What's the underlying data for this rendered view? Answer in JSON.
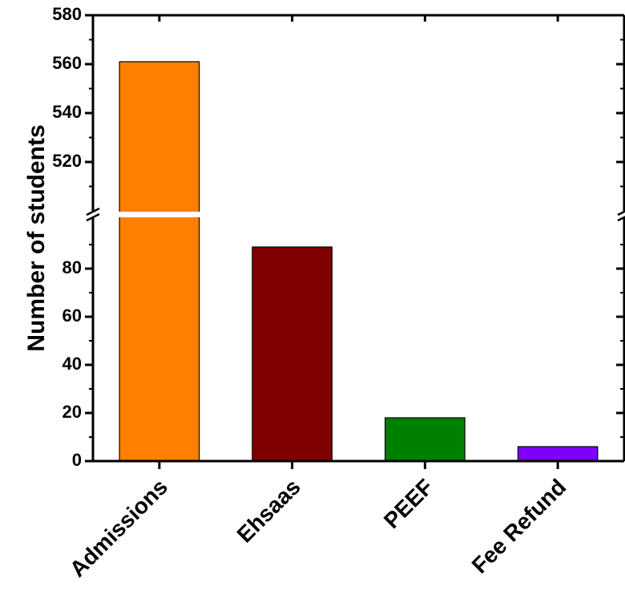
{
  "chart_data": {
    "type": "bar",
    "categories": [
      "Admissions",
      "Ehsaas",
      "PEEF",
      "Fee Refund"
    ],
    "values": [
      561,
      89,
      18,
      6
    ],
    "colors": [
      "#ff8000",
      "#800000",
      "#008000",
      "#8000ff"
    ],
    "xlabel": "",
    "ylabel": "Number of students",
    "y_break": {
      "lower": [
        0,
        95
      ],
      "upper": [
        500,
        580
      ]
    },
    "y_ticks_lower": [
      "0",
      "20",
      "40",
      "60",
      "80"
    ],
    "y_ticks_upper": [
      "520",
      "540",
      "560",
      "580"
    ],
    "grid": false,
    "legend": "none"
  }
}
